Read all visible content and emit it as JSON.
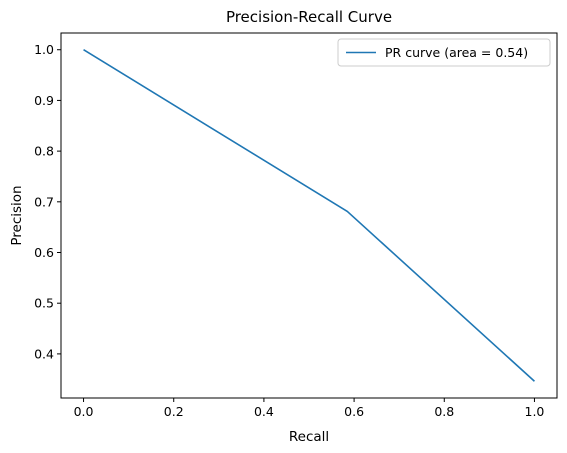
{
  "chart_data": {
    "type": "line",
    "title": "Precision-Recall Curve",
    "xlabel": "Recall",
    "ylabel": "Precision",
    "xlim": [
      -0.05,
      1.05
    ],
    "ylim": [
      0.313,
      1.033
    ],
    "xticks": [
      0.0,
      0.2,
      0.4,
      0.6,
      0.8,
      1.0
    ],
    "xtick_labels": [
      "0.0",
      "0.2",
      "0.4",
      "0.6",
      "0.8",
      "1.0"
    ],
    "yticks": [
      0.4,
      0.5,
      0.6,
      0.7,
      0.8,
      0.9,
      1.0
    ],
    "ytick_labels": [
      "0.4",
      "0.5",
      "0.6",
      "0.7",
      "0.8",
      "0.9",
      "1.0"
    ],
    "grid": false,
    "legend_position": "upper right",
    "series": [
      {
        "name": "PR curve (area = 0.54)",
        "color": "#1f77b4",
        "x": [
          0.0,
          0.585,
          1.0
        ],
        "y": [
          1.0,
          0.681,
          0.346
        ]
      }
    ]
  }
}
